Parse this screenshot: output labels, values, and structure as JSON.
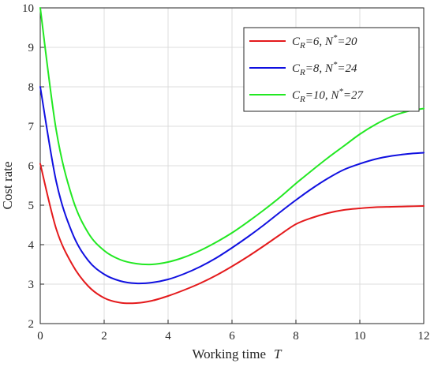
{
  "chart_data": {
    "type": "line",
    "title": "",
    "xlabel": "Working time",
    "xlabel_var": "T",
    "ylabel": "Cost rate",
    "xlim": [
      0,
      12
    ],
    "ylim": [
      2,
      10
    ],
    "xticks": [
      "0",
      "2",
      "4",
      "6",
      "8",
      "10",
      "12"
    ],
    "yticks": [
      "2",
      "3",
      "4",
      "5",
      "6",
      "7",
      "8",
      "9",
      "10"
    ],
    "grid": true,
    "legend_position": "top-right",
    "x": [
      0,
      0.5,
      1,
      1.5,
      2,
      2.5,
      3,
      3.5,
      4,
      4.5,
      5,
      5.5,
      6,
      6.5,
      7,
      7.5,
      8,
      8.5,
      9,
      9.5,
      10,
      10.5,
      11,
      11.5,
      12
    ],
    "series": [
      {
        "legend_main": "C",
        "legend_sub": "R",
        "legend_eq": "=6, N",
        "legend_sup": "*",
        "legend_end": "=20",
        "color": "#e41a1c",
        "values": [
          6.05,
          4.4,
          3.5,
          2.95,
          2.65,
          2.53,
          2.52,
          2.58,
          2.7,
          2.85,
          3.02,
          3.22,
          3.45,
          3.7,
          3.97,
          4.25,
          4.52,
          4.68,
          4.8,
          4.88,
          4.92,
          4.95,
          4.96,
          4.97,
          4.98
        ]
      },
      {
        "legend_main": "C",
        "legend_sub": "R",
        "legend_eq": "=8, N",
        "legend_sup": "*",
        "legend_end": "=24",
        "color": "#1010e0",
        "values": [
          8.0,
          5.6,
          4.3,
          3.6,
          3.25,
          3.08,
          3.02,
          3.04,
          3.12,
          3.26,
          3.44,
          3.66,
          3.92,
          4.2,
          4.5,
          4.82,
          5.13,
          5.42,
          5.68,
          5.9,
          6.05,
          6.17,
          6.25,
          6.3,
          6.33
        ]
      },
      {
        "legend_main": "C",
        "legend_sub": "R",
        "legend_eq": "=10, N",
        "legend_sup": "*",
        "legend_end": "=27",
        "color": "#22e822",
        "values": [
          10.0,
          6.9,
          5.2,
          4.3,
          3.85,
          3.62,
          3.52,
          3.5,
          3.56,
          3.68,
          3.85,
          4.06,
          4.3,
          4.58,
          4.88,
          5.2,
          5.55,
          5.88,
          6.2,
          6.5,
          6.8,
          7.05,
          7.25,
          7.38,
          7.45
        ]
      }
    ]
  }
}
